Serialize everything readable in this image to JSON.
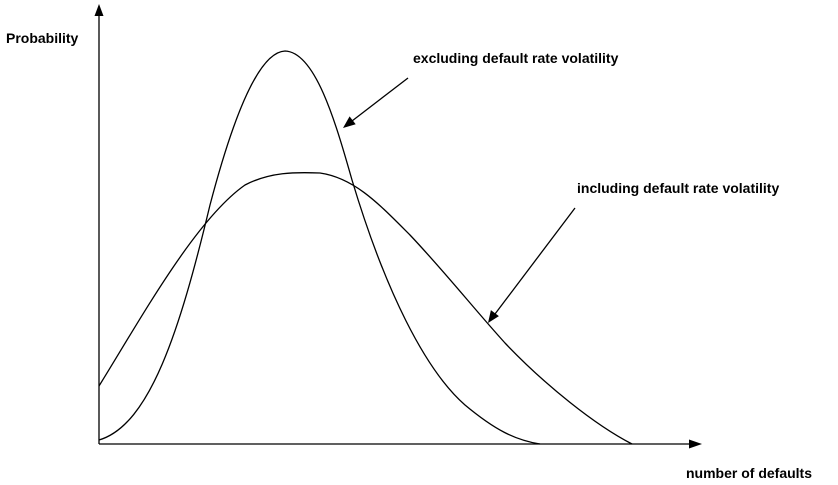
{
  "axes": {
    "y_label": "Probability",
    "x_label": "number of defaults"
  },
  "annotations": {
    "excluding": "excluding default rate volatility",
    "including": "including default rate volatility"
  },
  "colors": {
    "ink": "#000000",
    "background": "#ffffff"
  }
}
